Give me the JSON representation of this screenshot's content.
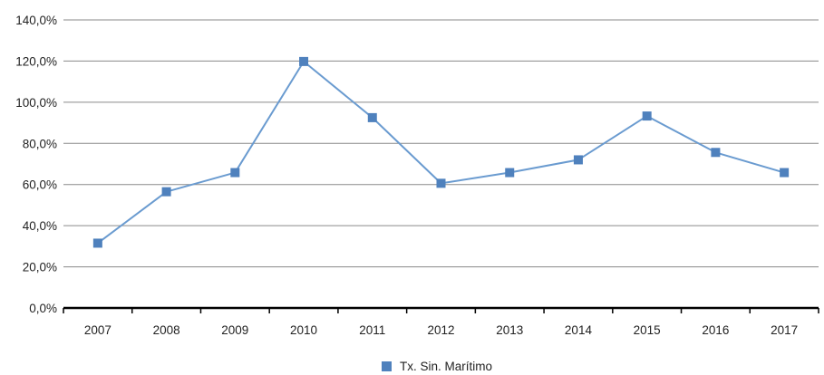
{
  "chart_data": {
    "type": "line",
    "categories": [
      "2007",
      "2008",
      "2009",
      "2010",
      "2011",
      "2012",
      "2013",
      "2014",
      "2015",
      "2016",
      "2017"
    ],
    "series": [
      {
        "name": "Tx. Sin. Marítimo",
        "values": [
          31.5,
          56.5,
          65.8,
          119.8,
          92.5,
          60.6,
          65.8,
          72.0,
          93.3,
          75.6,
          65.8
        ]
      }
    ],
    "yticks": [
      "0,0%",
      "20,0%",
      "40,0%",
      "60,0%",
      "80,0%",
      "100,0%",
      "120,0%",
      "140,0%"
    ],
    "ylim": [
      0,
      140
    ],
    "ystep": 20,
    "grid": true,
    "legend_position": "bottom",
    "series_color": "#4f81bd",
    "line_color": "#6a9bd0"
  }
}
